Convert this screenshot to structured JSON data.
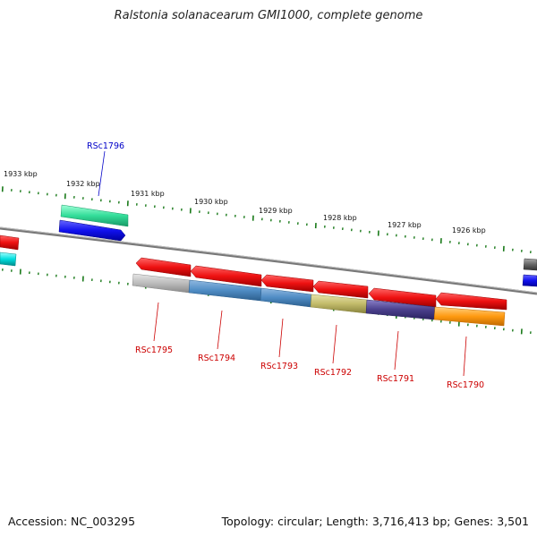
{
  "title": "Ralstonia solanacearum GMI1000, complete genome",
  "footer": {
    "accession": "Accession: NC_003295",
    "topology": "Topology: circular;",
    "length": "Length: 3,716,413 bp;",
    "genes": "Genes: 3,501"
  },
  "scale_labels": [
    "1933 kbp",
    "1932 kbp",
    "1931 kbp",
    "1930 kbp",
    "1929 kbp",
    "1928 kbp",
    "1927 kbp",
    "1926 kbp"
  ],
  "gene_labels": [
    {
      "text": "RSc1796",
      "color": "#0000c8"
    },
    {
      "text": "RSc1795",
      "color": "#cc0000"
    },
    {
      "text": "RSc1794",
      "color": "#cc0000"
    },
    {
      "text": "RSc1793",
      "color": "#cc0000"
    },
    {
      "text": "RSc1792",
      "color": "#cc0000"
    },
    {
      "text": "RSc1791",
      "color": "#cc0000"
    },
    {
      "text": "RSc1790",
      "color": "#cc0000"
    }
  ],
  "colors": {
    "backbone": "#888888",
    "tick": "#1a7a1a",
    "gene_forward": "#ee1111",
    "gene_reverse": "#1111ee",
    "cog_green": "#33dd99",
    "cog_grey": "#bbbbbb",
    "cog_steel": "#4f8cc4",
    "cog_khaki": "#c2bb6a",
    "cog_indigo": "#4a3f8c",
    "cog_orange": "#ff9a10",
    "cyan": "#00dede",
    "dark_grey": "#666666"
  }
}
